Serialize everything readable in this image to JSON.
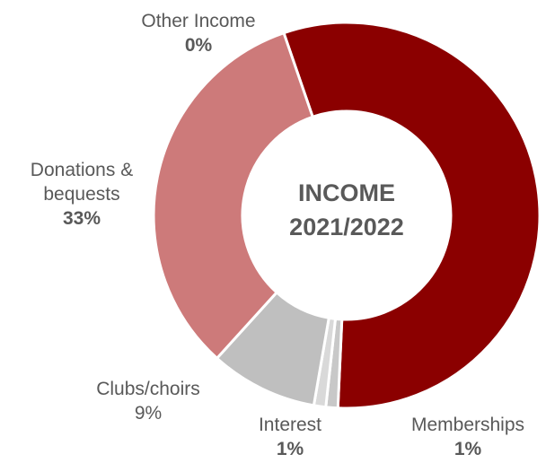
{
  "center_title": {
    "line1": "INCOME",
    "line2": "2021/2022"
  },
  "labels": {
    "other_income": {
      "name": "Other Income",
      "pct": "0%"
    },
    "donations": {
      "name_line1": "Donations &",
      "name_line2": "bequests",
      "pct": "33%"
    },
    "clubs": {
      "name": "Clubs/choirs",
      "pct": "9%"
    },
    "interest": {
      "name": "Interest",
      "pct": "1%"
    },
    "memberships": {
      "name": "Memberships",
      "pct": "1%"
    }
  },
  "chart_data": {
    "type": "pie",
    "variant": "donut",
    "title": "INCOME 2021/2022",
    "slices": [
      {
        "label": "Other Income",
        "value": 0,
        "color": "#c0c0c0"
      },
      {
        "label": "Unlabeled segment",
        "value": 56,
        "color": "#8b0000"
      },
      {
        "label": "Memberships",
        "value": 1,
        "color": "#c8c8c8"
      },
      {
        "label": "Interest",
        "value": 1,
        "color": "#d9d9d9"
      },
      {
        "label": "Clubs/choirs",
        "value": 9,
        "color": "#bfbfbf"
      },
      {
        "label": "Donations & bequests",
        "value": 33,
        "color": "#cd7a7a"
      }
    ]
  }
}
